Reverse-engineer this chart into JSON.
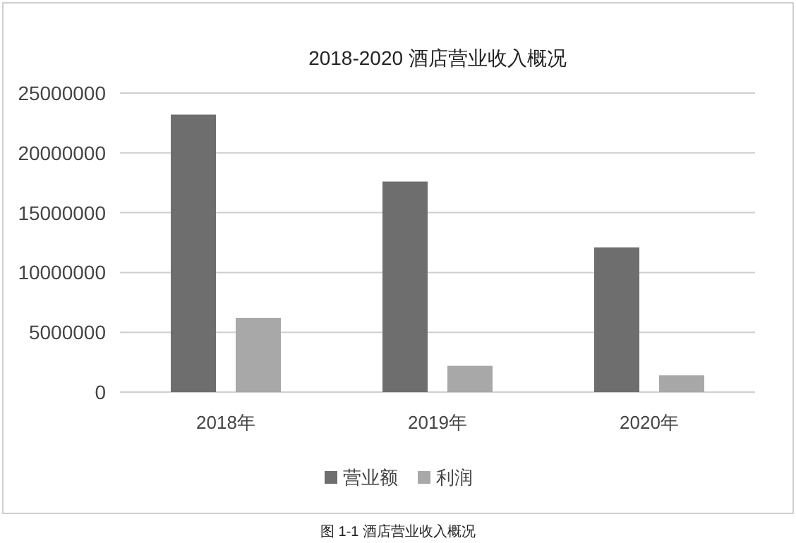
{
  "chart_data": {
    "type": "bar",
    "title": "2018-2020  酒店营业收入概况",
    "categories": [
      "2018年",
      "2019年",
      "2020年"
    ],
    "series": [
      {
        "name": "营业额",
        "color": "#6e6e6e",
        "values": [
          23200000,
          17600000,
          12100000
        ]
      },
      {
        "name": "利润",
        "color": "#a8a8a8",
        "values": [
          6200000,
          2200000,
          1400000
        ]
      }
    ],
    "ylim": [
      0,
      25000000
    ],
    "yticks": [
      0,
      5000000,
      10000000,
      15000000,
      20000000,
      25000000
    ],
    "grid": "y",
    "legend": "bottom",
    "annotations": [
      "图 1-1 酒店营业收入概况"
    ]
  }
}
